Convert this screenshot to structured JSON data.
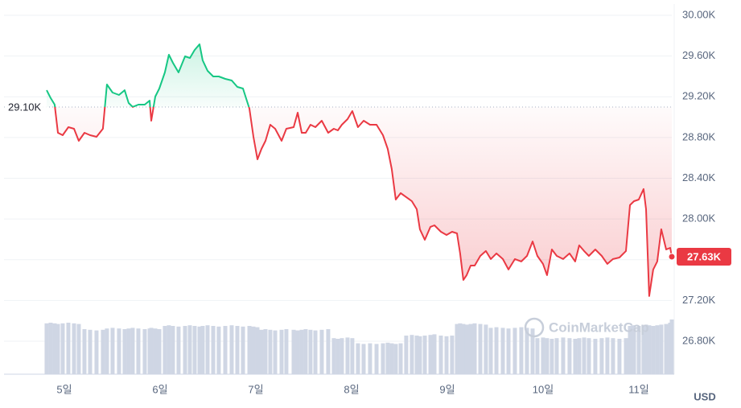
{
  "chart_data": {
    "type": "line",
    "x": [
      4.815,
      4.857,
      4.899,
      4.933,
      4.983,
      5.042,
      5.101,
      5.151,
      5.21,
      5.269,
      5.336,
      5.403,
      5.445,
      5.504,
      5.571,
      5.63,
      5.672,
      5.714,
      5.773,
      5.84,
      5.891,
      5.908,
      5.95,
      5.992,
      6.05,
      6.092,
      6.134,
      6.193,
      6.261,
      6.311,
      6.361,
      6.412,
      6.445,
      6.496,
      6.555,
      6.613,
      6.681,
      6.748,
      6.807,
      6.866,
      6.933,
      6.975,
      7.017,
      7.059,
      7.101,
      7.151,
      7.202,
      7.269,
      7.319,
      7.395,
      7.437,
      7.479,
      7.521,
      7.571,
      7.622,
      7.689,
      7.756,
      7.815,
      7.857,
      7.899,
      7.958,
      8.008,
      8.067,
      8.126,
      8.193,
      8.261,
      8.328,
      8.378,
      8.42,
      8.462,
      8.513,
      8.571,
      8.63,
      8.681,
      8.714,
      8.765,
      8.824,
      8.866,
      8.933,
      8.992,
      9.05,
      9.101,
      9.134,
      9.168,
      9.202,
      9.244,
      9.286,
      9.345,
      9.403,
      9.454,
      9.513,
      9.58,
      9.639,
      9.706,
      9.773,
      9.832,
      9.891,
      9.941,
      10.0,
      10.042,
      10.092,
      10.143,
      10.21,
      10.277,
      10.336,
      10.378,
      10.429,
      10.479,
      10.546,
      10.613,
      10.672,
      10.731,
      10.798,
      10.866,
      10.908,
      10.95,
      11.0,
      11.05,
      11.076,
      11.109,
      11.151,
      11.193,
      11.235,
      11.286,
      11.328,
      11.345
    ],
    "series": [
      {
        "values": [
          29265,
          29187,
          29124,
          28847,
          28823,
          28902,
          28886,
          28768,
          28847,
          28823,
          28807,
          28886,
          29321,
          29242,
          29218,
          29265,
          29139,
          29100,
          29123,
          29123,
          29163,
          28965,
          29202,
          29281,
          29439,
          29613,
          29534,
          29439,
          29597,
          29581,
          29660,
          29716,
          29558,
          29455,
          29400,
          29400,
          29376,
          29360,
          29297,
          29281,
          29084,
          28807,
          28586,
          28689,
          28768,
          28926,
          28886,
          28768,
          28886,
          28902,
          29044,
          28847,
          28847,
          28926,
          28902,
          28965,
          28847,
          28886,
          28870,
          28926,
          28981,
          29060,
          28902,
          28965,
          28926,
          28926,
          28823,
          28689,
          28491,
          28191,
          28254,
          28215,
          28175,
          28096,
          27899,
          27796,
          27923,
          27938,
          27875,
          27843,
          27875,
          27859,
          27662,
          27401,
          27449,
          27543,
          27543,
          27638,
          27686,
          27607,
          27662,
          27607,
          27504,
          27607,
          27583,
          27638,
          27780,
          27638,
          27559,
          27449,
          27701,
          27638,
          27607,
          27662,
          27583,
          27741,
          27686,
          27638,
          27701,
          27638,
          27559,
          27607,
          27622,
          27686,
          28136,
          28175,
          28191,
          28294,
          28096,
          27243,
          27504,
          27583,
          27899,
          27701,
          27717,
          27630
        ],
        "above_color": "#16c784",
        "below_color": "#ea3943"
      }
    ],
    "volume": {
      "color": "#cfd6e4",
      "ylim": [
        0,
        100
      ],
      "values": [
        79,
        80,
        79,
        78,
        79,
        80,
        79,
        78,
        70,
        69,
        68,
        69,
        71,
        72,
        71,
        70,
        71,
        72,
        71,
        70,
        71,
        72,
        71,
        70,
        75,
        76,
        75,
        74,
        75,
        76,
        75,
        74,
        75,
        76,
        75,
        74,
        75,
        76,
        75,
        74,
        75,
        74,
        73,
        69,
        70,
        69,
        68,
        69,
        70,
        69,
        68,
        69,
        70,
        69,
        68,
        69,
        70,
        56,
        55,
        56,
        57,
        56,
        48,
        47,
        48,
        47,
        48,
        49,
        48,
        47,
        48,
        60,
        61,
        60,
        59,
        60,
        61,
        62,
        60,
        59,
        60,
        78,
        79,
        78,
        77,
        78,
        79,
        78,
        77,
        72,
        73,
        72,
        71,
        72,
        73,
        72,
        71,
        56,
        57,
        56,
        55,
        56,
        57,
        56,
        55,
        56,
        57,
        56,
        55,
        56,
        57,
        56,
        55,
        56,
        75,
        76,
        75,
        76,
        77,
        76,
        75,
        76,
        77,
        78,
        80,
        85
      ]
    },
    "xlim": [
      4.37,
      11.345
    ],
    "xticks": [
      {
        "value": 5,
        "label": "5일"
      },
      {
        "value": 6,
        "label": "6일"
      },
      {
        "value": 7,
        "label": "7일"
      },
      {
        "value": 8,
        "label": "8일"
      },
      {
        "value": 9,
        "label": "9일"
      },
      {
        "value": 10,
        "label": "10일"
      },
      {
        "value": 11,
        "label": "11일"
      }
    ],
    "ylim": [
      26476,
      30111
    ],
    "yticks": [
      {
        "value": 26800,
        "label": "26.80K"
      },
      {
        "value": 27200,
        "label": "27.20K"
      },
      {
        "value": 27600,
        "label": "27.60K"
      },
      {
        "value": 28000,
        "label": "28.00K"
      },
      {
        "value": 28400,
        "label": "28.40K"
      },
      {
        "value": 28800,
        "label": "28.80K"
      },
      {
        "value": 29200,
        "label": "29.20K"
      },
      {
        "value": 29600,
        "label": "29.60K"
      },
      {
        "value": 30000,
        "label": "30.00K"
      }
    ],
    "baseline": {
      "value": 29100,
      "label": "29.10K"
    },
    "last_label": "27.63K",
    "currency": "USD",
    "watermark": "CoinMarketCap",
    "grid": true
  }
}
